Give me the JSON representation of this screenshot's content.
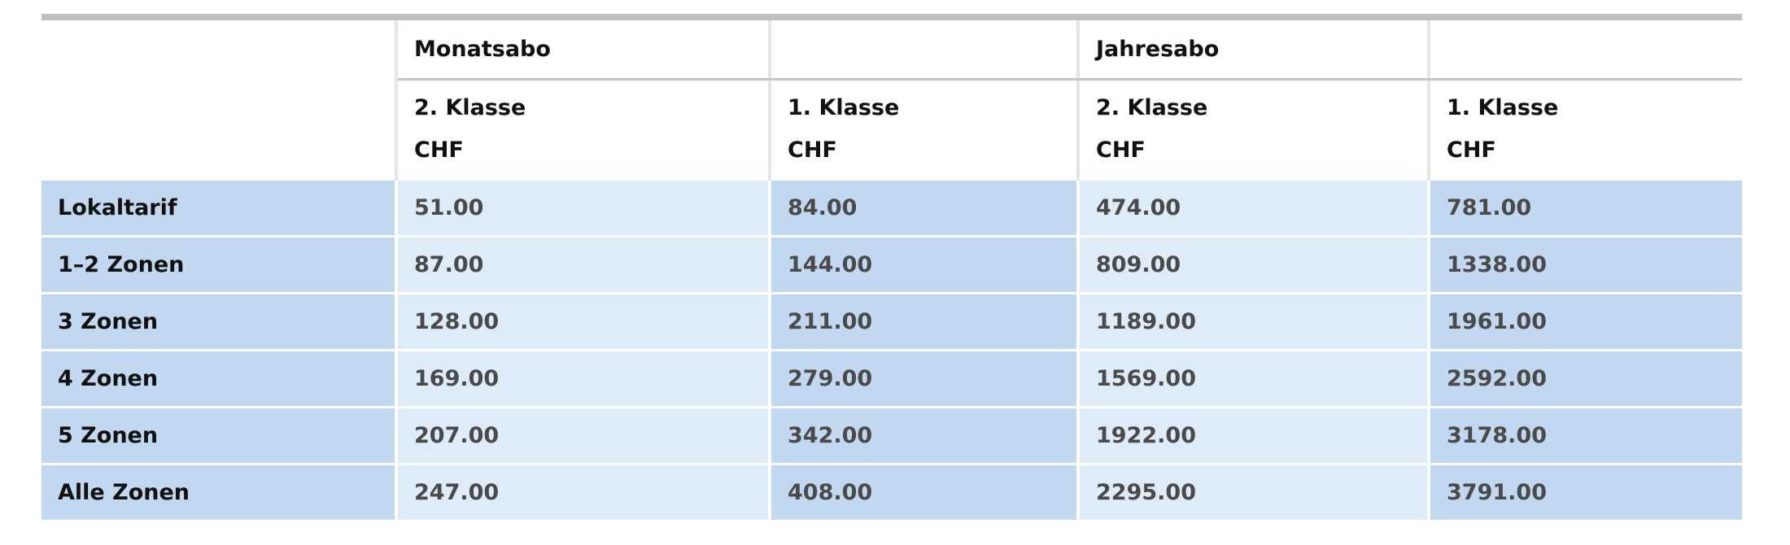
{
  "header": {
    "groups": [
      "Monatsabo",
      "Jahresabo"
    ],
    "columns": [
      {
        "klasse": "2. Klasse",
        "currency": "CHF"
      },
      {
        "klasse": "1. Klasse",
        "currency": "CHF"
      },
      {
        "klasse": "2. Klasse",
        "currency": "CHF"
      },
      {
        "klasse": "1. Klasse",
        "currency": "CHF"
      }
    ]
  },
  "rows": [
    {
      "label": "Lokaltarif",
      "values": [
        "51.00",
        "84.00",
        "474.00",
        "781.00"
      ]
    },
    {
      "label": "1–2 Zonen",
      "values": [
        "87.00",
        "144.00",
        "809.00",
        "1338.00"
      ]
    },
    {
      "label": "3 Zonen",
      "values": [
        "128.00",
        "211.00",
        "1189.00",
        "1961.00"
      ]
    },
    {
      "label": "4 Zonen",
      "values": [
        "169.00",
        "279.00",
        "1569.00",
        "2592.00"
      ]
    },
    {
      "label": "5 Zonen",
      "values": [
        "207.00",
        "342.00",
        "1922.00",
        "3178.00"
      ]
    },
    {
      "label": "Alle Zonen",
      "values": [
        "247.00",
        "408.00",
        "2295.00",
        "3791.00"
      ]
    }
  ],
  "colors": {
    "dark_cell": "#c2d8f1",
    "light_cell": "#deebf8",
    "rule": "#c0c0c0"
  }
}
